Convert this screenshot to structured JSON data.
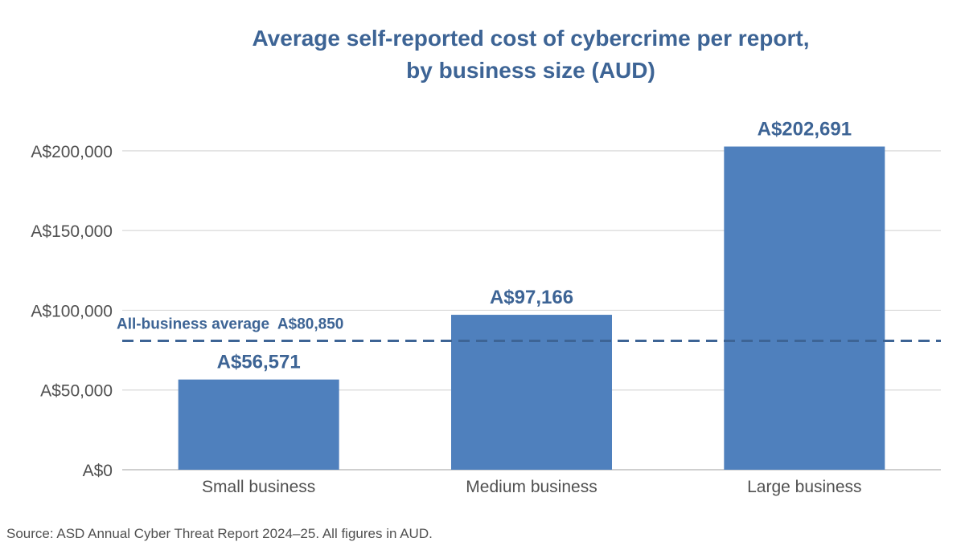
{
  "chart_data": {
    "type": "bar",
    "title_lines": [
      "Average self-reported cost of cybercrime per report,",
      "by business size (AUD)"
    ],
    "categories": [
      "Small business",
      "Medium business",
      "Large business"
    ],
    "values": [
      56571,
      97166,
      202691
    ],
    "data_labels": [
      "A$56,571",
      "A$97,166",
      "A$202,691"
    ],
    "ylim": [
      0,
      210000
    ],
    "y_ticks": [
      0,
      50000,
      100000,
      150000,
      200000
    ],
    "y_tick_labels": [
      "A$0",
      "A$50,000",
      "A$100,000",
      "A$150,000",
      "A$200,000"
    ],
    "xlabel": "",
    "ylabel": "",
    "grid": true,
    "legend": "none",
    "reference_line": {
      "value": 80850,
      "label": "All-business average  A$80,850",
      "style": "dashed"
    },
    "colors": {
      "bar": "#4f80bd",
      "title": "#3d6495",
      "reference_line": "#3d6495",
      "grid": "#d9d9d9",
      "axis_text": "#505050"
    }
  },
  "footer": {
    "source": "Source: ASD Annual Cyber Threat Report 2024–25. All figures in AUD."
  }
}
